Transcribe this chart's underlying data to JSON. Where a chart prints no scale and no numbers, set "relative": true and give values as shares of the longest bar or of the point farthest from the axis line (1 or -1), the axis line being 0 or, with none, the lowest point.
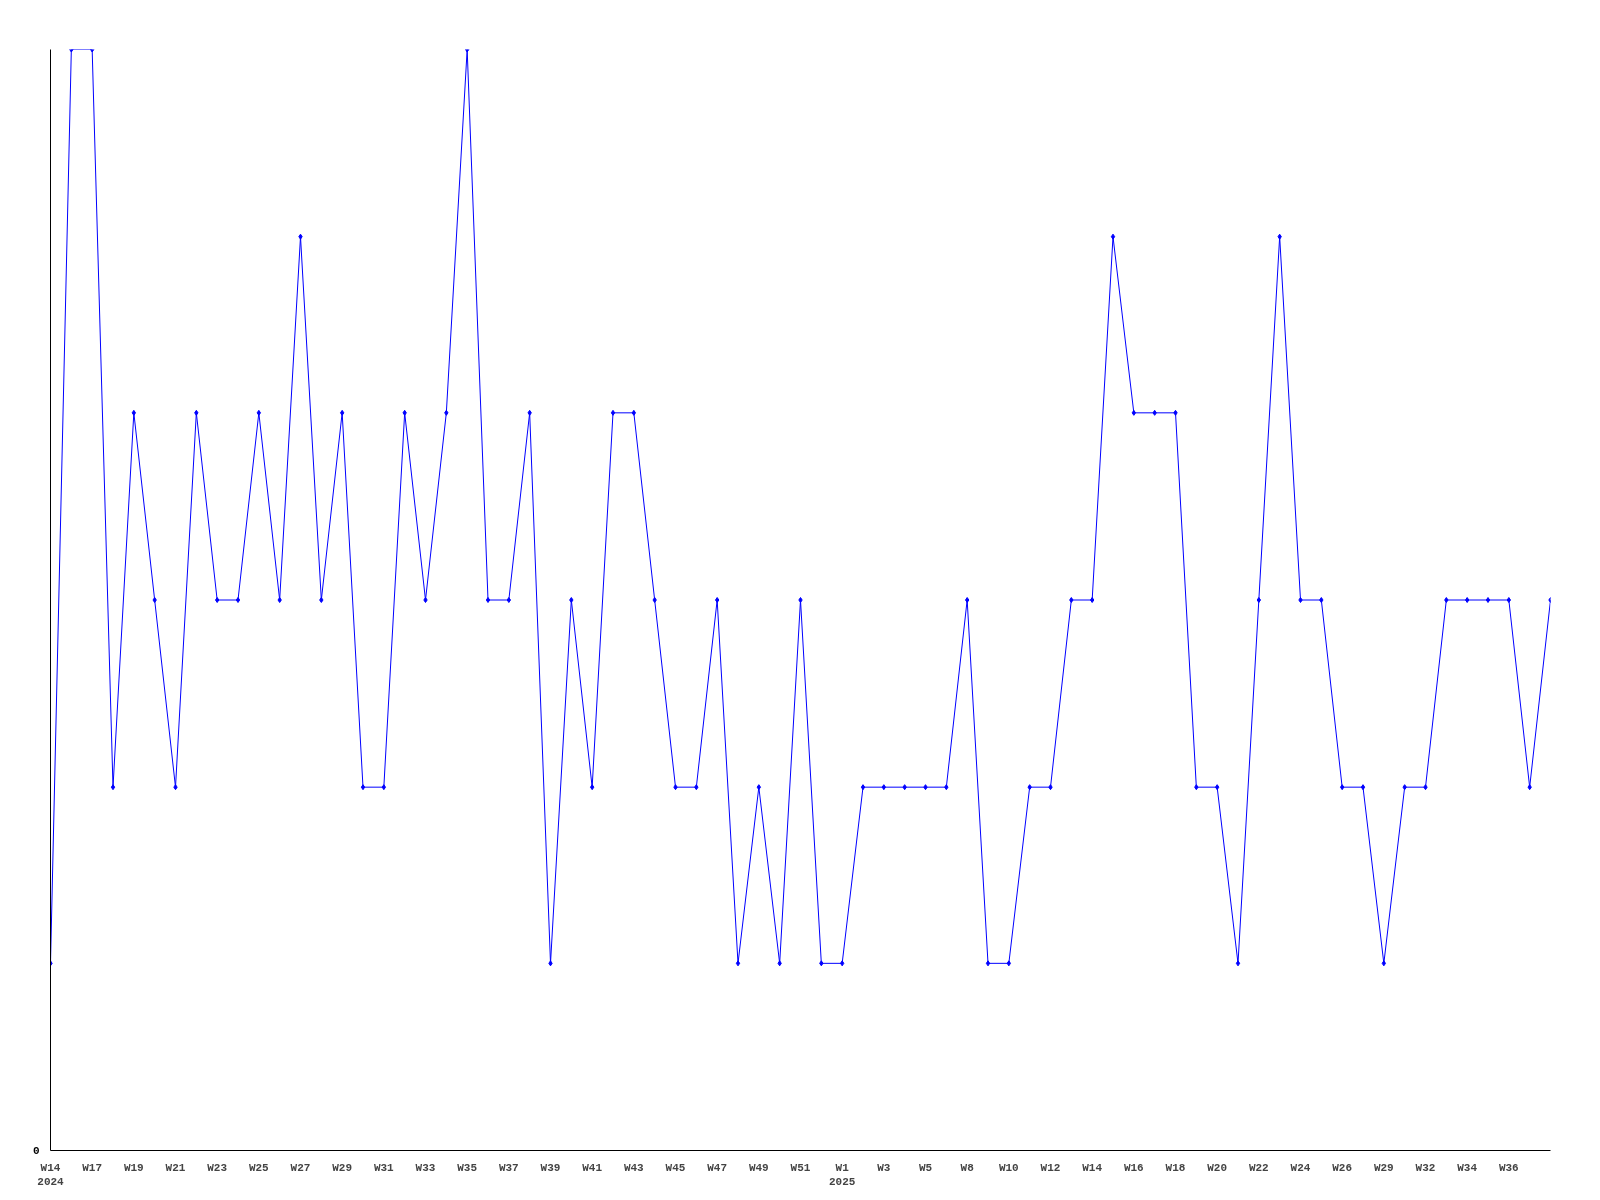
{
  "chart_data": {
    "type": "line",
    "relative": true,
    "color": "#0000ff",
    "marker": "diamond",
    "grid": false,
    "categories": [
      "W14\n2024",
      null,
      "W17",
      null,
      "W19",
      null,
      "W21",
      null,
      "W23",
      null,
      "W25",
      null,
      "W27",
      null,
      "W29",
      null,
      "W31",
      null,
      "W33",
      null,
      "W35",
      null,
      "W37",
      null,
      "W39",
      null,
      "W41",
      null,
      "W43",
      null,
      "W45",
      null,
      "W47",
      null,
      "W49",
      null,
      "W51",
      null,
      "W1\n2025",
      null,
      "W3",
      null,
      "W5",
      null,
      "W8",
      null,
      "W10",
      null,
      "W12",
      null,
      "W14",
      null,
      "W16",
      null,
      "W18",
      null,
      "W20",
      null,
      "W22",
      null,
      "W24",
      null,
      "W26",
      null,
      "W29",
      null,
      "W32",
      null,
      "W34",
      null,
      "W36",
      null,
      null
    ],
    "values": [
      0.17,
      1,
      1,
      0.33,
      0.67,
      0.5,
      0.33,
      0.67,
      0.5,
      0.5,
      0.67,
      0.5,
      0.83,
      0.5,
      0.67,
      0.33,
      0.33,
      0.67,
      0.5,
      0.67,
      1,
      0.5,
      0.5,
      0.67,
      0.17,
      0.5,
      0.33,
      0.67,
      0.67,
      0.5,
      0.33,
      0.33,
      0.5,
      0.17,
      0.33,
      0.17,
      0.5,
      0.17,
      0.17,
      0.33,
      0.33,
      0.33,
      0.33,
      0.33,
      0.5,
      0.17,
      0.17,
      0.33,
      0.33,
      0.5,
      0.5,
      0.83,
      0.67,
      0.67,
      0.67,
      0.33,
      0.33,
      0.17,
      0.5,
      0.83,
      0.5,
      0.5,
      0.33,
      0.33,
      0.17,
      0.33,
      0.33,
      0.5,
      0.5,
      0.5,
      0.5,
      0.33,
      0.5
    ],
    "annotations": [
      "0"
    ]
  }
}
